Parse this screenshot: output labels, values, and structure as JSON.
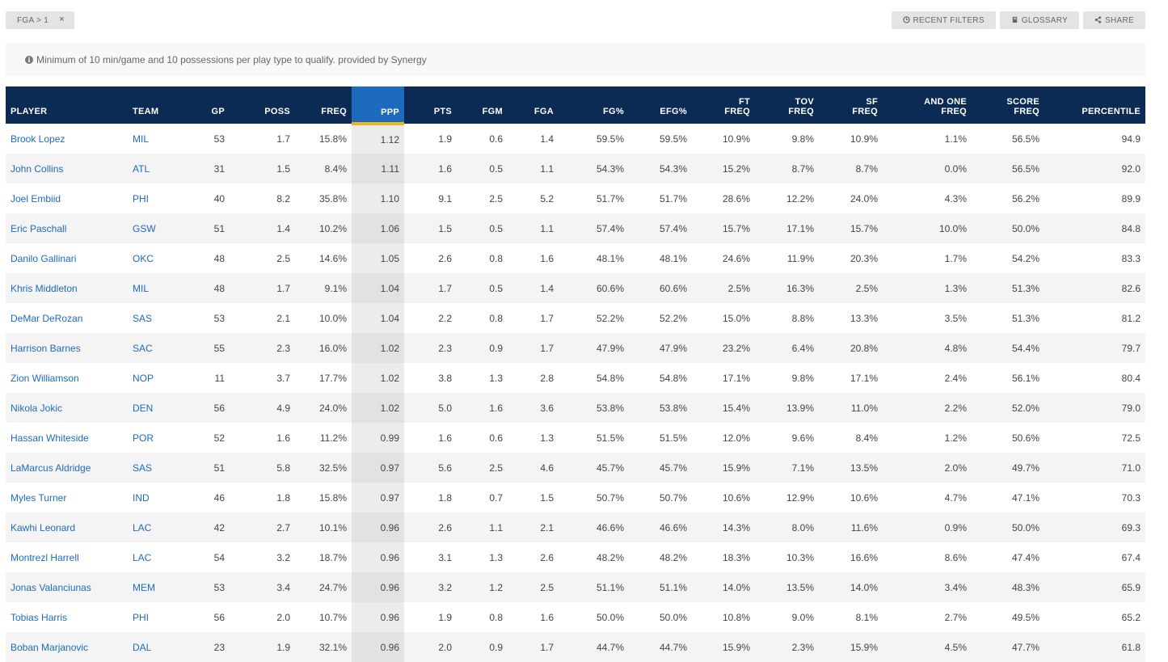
{
  "filters": {
    "active_chip": "FGA > 1",
    "chip_close": "×"
  },
  "toolbar": {
    "recent_filters": "RECENT FILTERS",
    "glossary": "GLOSSARY",
    "share": "SHARE"
  },
  "notice": {
    "text": "Minimum of 10 min/game and 10 possessions per play type to qualify. provided by Synergy"
  },
  "table": {
    "headers": {
      "player": "PLAYER",
      "team": "TEAM",
      "gp": "GP",
      "poss": "POSS",
      "freq": "FREQ",
      "ppp": "PPP",
      "pts": "PTS",
      "fgm": "FGM",
      "fga": "FGA",
      "fg_pct": "FG%",
      "efg_pct": "EFG%",
      "ft_freq_1": "FT",
      "ft_freq_2": "FREQ",
      "tov_freq_1": "TOV",
      "tov_freq_2": "FREQ",
      "sf_freq_1": "SF",
      "sf_freq_2": "FREQ",
      "and_one_1": "AND ONE",
      "and_one_2": "FREQ",
      "score_freq_1": "SCORE",
      "score_freq_2": "FREQ",
      "percentile": "PERCENTILE"
    },
    "rows": [
      [
        "Brook Lopez",
        "MIL",
        "53",
        "1.7",
        "15.8%",
        "1.12",
        "1.9",
        "0.6",
        "1.4",
        "59.5%",
        "59.5%",
        "10.9%",
        "9.8%",
        "10.9%",
        "1.1%",
        "56.5%",
        "94.9"
      ],
      [
        "John Collins",
        "ATL",
        "31",
        "1.5",
        "8.4%",
        "1.11",
        "1.6",
        "0.5",
        "1.1",
        "54.3%",
        "54.3%",
        "15.2%",
        "8.7%",
        "8.7%",
        "0.0%",
        "56.5%",
        "92.0"
      ],
      [
        "Joel Embiid",
        "PHI",
        "40",
        "8.2",
        "35.8%",
        "1.10",
        "9.1",
        "2.5",
        "5.2",
        "51.7%",
        "51.7%",
        "28.6%",
        "12.2%",
        "24.0%",
        "4.3%",
        "56.2%",
        "89.9"
      ],
      [
        "Eric Paschall",
        "GSW",
        "51",
        "1.4",
        "10.2%",
        "1.06",
        "1.5",
        "0.5",
        "1.1",
        "57.4%",
        "57.4%",
        "15.7%",
        "17.1%",
        "15.7%",
        "10.0%",
        "50.0%",
        "84.8"
      ],
      [
        "Danilo Gallinari",
        "OKC",
        "48",
        "2.5",
        "14.6%",
        "1.05",
        "2.6",
        "0.8",
        "1.6",
        "48.1%",
        "48.1%",
        "24.6%",
        "11.9%",
        "20.3%",
        "1.7%",
        "54.2%",
        "83.3"
      ],
      [
        "Khris Middleton",
        "MIL",
        "48",
        "1.7",
        "9.1%",
        "1.04",
        "1.7",
        "0.5",
        "1.4",
        "60.6%",
        "60.6%",
        "2.5%",
        "16.3%",
        "2.5%",
        "1.3%",
        "51.3%",
        "82.6"
      ],
      [
        "DeMar DeRozan",
        "SAS",
        "53",
        "2.1",
        "10.0%",
        "1.04",
        "2.2",
        "0.8",
        "1.7",
        "52.2%",
        "52.2%",
        "15.0%",
        "8.8%",
        "13.3%",
        "3.5%",
        "51.3%",
        "81.2"
      ],
      [
        "Harrison Barnes",
        "SAC",
        "55",
        "2.3",
        "16.0%",
        "1.02",
        "2.3",
        "0.9",
        "1.7",
        "47.9%",
        "47.9%",
        "23.2%",
        "6.4%",
        "20.8%",
        "4.8%",
        "54.4%",
        "79.7"
      ],
      [
        "Zion Williamson",
        "NOP",
        "11",
        "3.7",
        "17.7%",
        "1.02",
        "3.8",
        "1.3",
        "2.8",
        "54.8%",
        "54.8%",
        "17.1%",
        "9.8%",
        "17.1%",
        "2.4%",
        "56.1%",
        "80.4"
      ],
      [
        "Nikola Jokic",
        "DEN",
        "56",
        "4.9",
        "24.0%",
        "1.02",
        "5.0",
        "1.6",
        "3.6",
        "53.8%",
        "53.8%",
        "15.4%",
        "13.9%",
        "11.0%",
        "2.2%",
        "52.0%",
        "79.0"
      ],
      [
        "Hassan Whiteside",
        "POR",
        "52",
        "1.6",
        "11.2%",
        "0.99",
        "1.6",
        "0.6",
        "1.3",
        "51.5%",
        "51.5%",
        "12.0%",
        "9.6%",
        "8.4%",
        "1.2%",
        "50.6%",
        "72.5"
      ],
      [
        "LaMarcus Aldridge",
        "SAS",
        "51",
        "5.8",
        "32.5%",
        "0.97",
        "5.6",
        "2.5",
        "4.6",
        "45.7%",
        "45.7%",
        "15.9%",
        "7.1%",
        "13.5%",
        "2.0%",
        "49.7%",
        "71.0"
      ],
      [
        "Myles Turner",
        "IND",
        "46",
        "1.8",
        "15.8%",
        "0.97",
        "1.8",
        "0.7",
        "1.5",
        "50.7%",
        "50.7%",
        "10.6%",
        "12.9%",
        "10.6%",
        "4.7%",
        "47.1%",
        "70.3"
      ],
      [
        "Kawhi Leonard",
        "LAC",
        "42",
        "2.7",
        "10.1%",
        "0.96",
        "2.6",
        "1.1",
        "2.1",
        "46.6%",
        "46.6%",
        "14.3%",
        "8.0%",
        "11.6%",
        "0.9%",
        "50.0%",
        "69.3"
      ],
      [
        "Montrezl Harrell",
        "LAC",
        "54",
        "3.2",
        "18.7%",
        "0.96",
        "3.1",
        "1.3",
        "2.6",
        "48.2%",
        "48.2%",
        "18.3%",
        "10.3%",
        "16.6%",
        "8.6%",
        "47.4%",
        "67.4"
      ],
      [
        "Jonas Valanciunas",
        "MEM",
        "53",
        "3.4",
        "24.7%",
        "0.96",
        "3.2",
        "1.2",
        "2.5",
        "51.1%",
        "51.1%",
        "14.0%",
        "13.5%",
        "14.0%",
        "3.4%",
        "48.3%",
        "65.9"
      ],
      [
        "Tobias Harris",
        "PHI",
        "56",
        "2.0",
        "10.7%",
        "0.96",
        "1.9",
        "0.8",
        "1.6",
        "50.0%",
        "50.0%",
        "10.8%",
        "9.0%",
        "8.1%",
        "2.7%",
        "49.5%",
        "65.2"
      ],
      [
        "Boban Marjanovic",
        "DAL",
        "23",
        "1.9",
        "32.1%",
        "0.96",
        "2.0",
        "0.9",
        "1.7",
        "44.7%",
        "44.7%",
        "15.9%",
        "2.3%",
        "15.9%",
        "4.5%",
        "47.7%",
        "61.8"
      ]
    ]
  }
}
